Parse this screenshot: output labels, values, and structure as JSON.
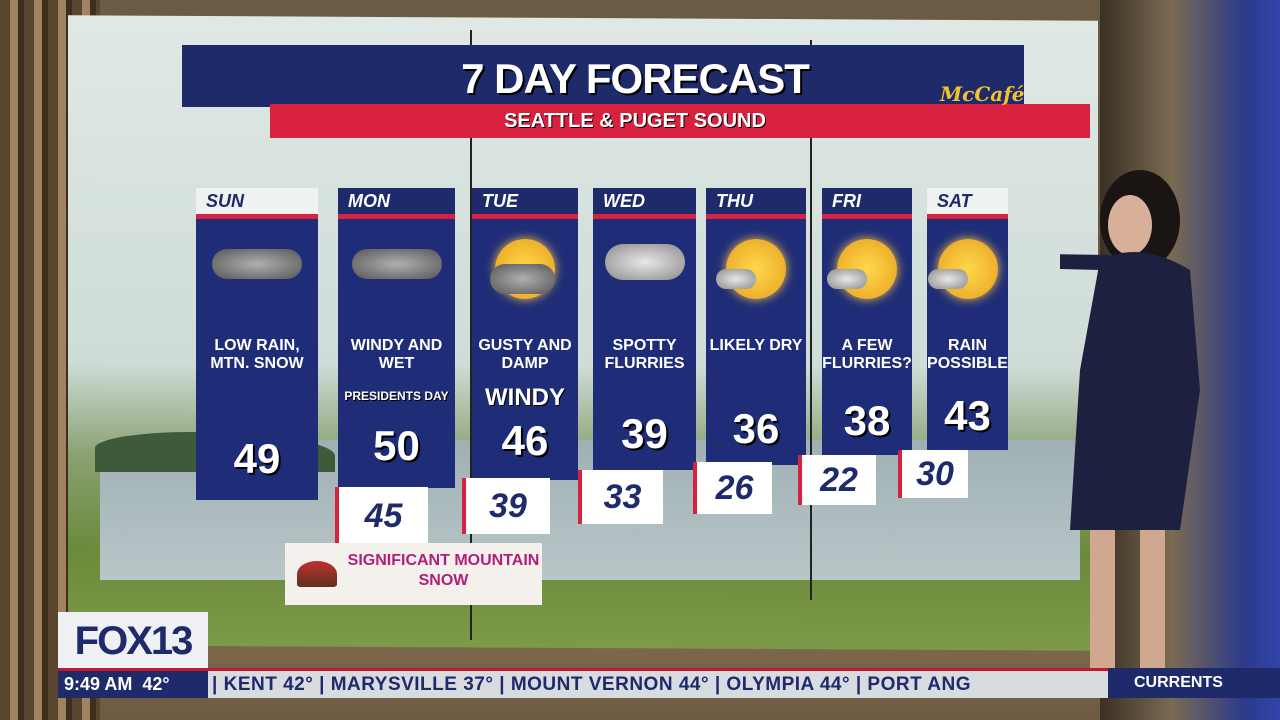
{
  "forecast": {
    "title": "7 DAY FORECAST",
    "subtitle": "SEATTLE & PUGET SOUND",
    "sponsor": "McCafé",
    "days": [
      {
        "day": "SUN",
        "icon": "rain-snow-cloud-icon",
        "desc": "LOW RAIN, MTN. SNOW",
        "high": "49",
        "low": ""
      },
      {
        "day": "MON",
        "icon": "rain-cloud-icon",
        "desc": "WINDY AND WET",
        "extra": "PRESIDENTS DAY",
        "high": "50",
        "low": "45"
      },
      {
        "day": "TUE",
        "icon": "partly-sunny-rain-icon",
        "desc": "GUSTY AND DAMP",
        "extra": "WINDY",
        "high": "46",
        "low": "39"
      },
      {
        "day": "WED",
        "icon": "snow-cloud-icon",
        "desc": "SPOTTY FLURRIES",
        "high": "39",
        "low": "33"
      },
      {
        "day": "THU",
        "icon": "mostly-sunny-icon",
        "desc": "LIKELY DRY",
        "high": "36",
        "low": "26"
      },
      {
        "day": "FRI",
        "icon": "partly-sunny-icon",
        "desc": "A FEW FLURRIES?",
        "high": "38",
        "low": "22"
      },
      {
        "day": "SAT",
        "icon": "partly-sunny-icon",
        "desc": "RAIN POSSIBLE",
        "high": "43",
        "low": "30"
      }
    ],
    "callout": "SIGNIFICANT MOUNTAIN SNOW"
  },
  "bug": {
    "logo": "FOX13",
    "time": "9:49 AM",
    "temp": "42°"
  },
  "ticker": {
    "text": "| KENT 42° | MARYSVILLE 37° | MOUNT VERNON 44° | OLYMPIA 44° | PORT ANG",
    "label": "CURRENTS"
  },
  "colors": {
    "navy": "#1e2a6a",
    "red": "#d8213e"
  }
}
